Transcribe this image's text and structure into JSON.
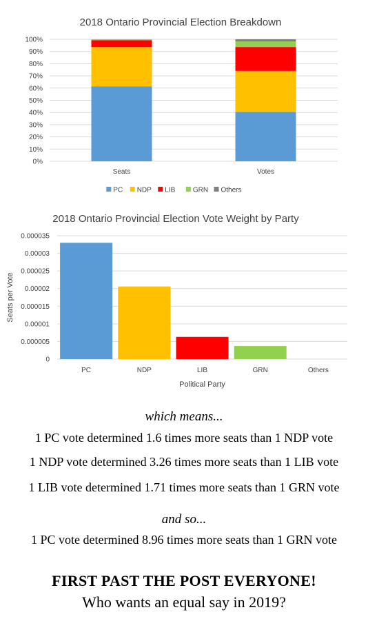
{
  "colors": {
    "PC": "#5b9bd5",
    "NDP": "#ffc000",
    "LIB": "#ff0000",
    "GRN": "#92d050",
    "Others": "#808080"
  },
  "chart_data": [
    {
      "type": "bar",
      "stacked": true,
      "title": "2018 Ontario Provincial Election Breakdown",
      "categories": [
        "Seats",
        "Votes"
      ],
      "series": [
        {
          "name": "PC",
          "values": [
            61.3,
            40.5
          ]
        },
        {
          "name": "NDP",
          "values": [
            32.3,
            33.6
          ]
        },
        {
          "name": "LIB",
          "values": [
            5.6,
            19.6
          ]
        },
        {
          "name": "GRN",
          "values": [
            0.8,
            4.6
          ]
        },
        {
          "name": "Others",
          "values": [
            0,
            1.7
          ]
        }
      ],
      "ylim": [
        0,
        100
      ],
      "yticks": [
        "0%",
        "10%",
        "20%",
        "30%",
        "40%",
        "50%",
        "60%",
        "70%",
        "80%",
        "90%",
        "100%"
      ],
      "xlabel": "",
      "ylabel": "",
      "grid": true,
      "legend": "bottom"
    },
    {
      "type": "bar",
      "title": "2018 Ontario Provincial Election Vote Weight by Party",
      "categories": [
        "PC",
        "NDP",
        "LIB",
        "GRN",
        "Others"
      ],
      "values": [
        3.3e-05,
        2.06e-05,
        6.3e-06,
        3.7e-06,
        0
      ],
      "ylim": [
        0,
        3.5e-05
      ],
      "yticks": [
        "0",
        "0.000005",
        "0.00001",
        "0.000015",
        "0.00002",
        "0.000025",
        "0.00003",
        "0.000035"
      ],
      "xlabel": "Political Party",
      "ylabel": "Seats per Vote",
      "grid": true
    }
  ],
  "text": {
    "lead1": "which means...",
    "line1": "1 PC vote determined 1.6 times more seats than 1 NDP vote",
    "line2": "1 NDP vote determined 3.26 times more seats than 1 LIB vote",
    "line3": "1 LIB vote determined 1.71 times more seats than 1 GRN vote",
    "lead2": "and so...",
    "line4": "1 PC vote determined 8.96 times more seats than 1 GRN vote",
    "slogan": "FIRST PAST THE POST EVERYONE!",
    "question": "Who wants an equal say in 2019?"
  }
}
